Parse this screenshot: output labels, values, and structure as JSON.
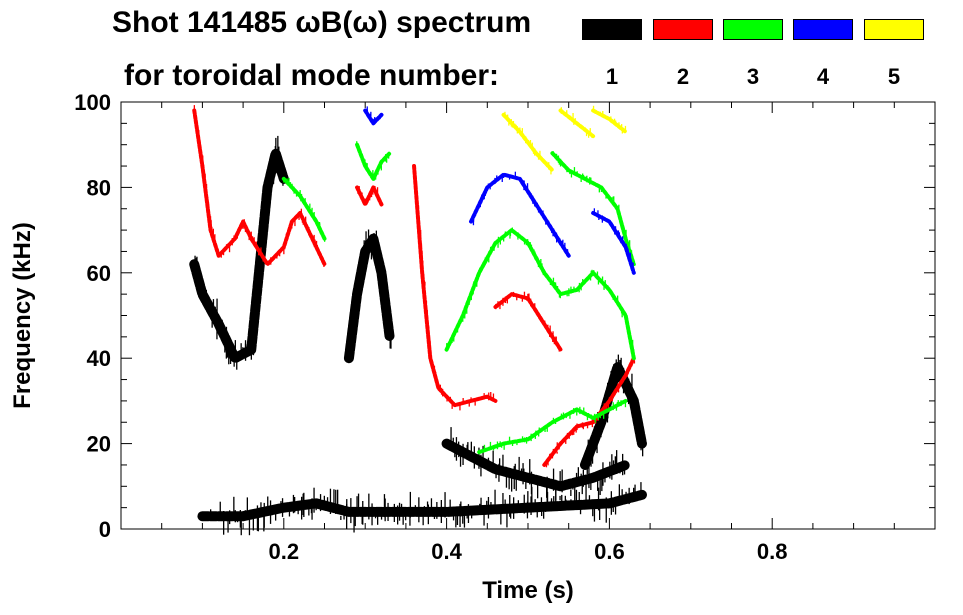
{
  "title_line1": "Shot 141485 ωB(ω) spectrum",
  "title_line2": "for toroidal mode number:",
  "chart_data": {
    "type": "spectrogram",
    "title": "Shot 141485 ωB(ω) spectrum",
    "xlabel": "Time (s)",
    "ylabel": "Frequency (kHz)",
    "xlim": [
      0.0,
      1.0
    ],
    "ylim": [
      0,
      100
    ],
    "x_ticks": [
      0.2,
      0.4,
      0.6,
      0.8
    ],
    "x_tick_labels": [
      "0.2",
      "0.4",
      "0.6",
      "0.8"
    ],
    "y_ticks": [
      0,
      20,
      40,
      60,
      80,
      100
    ],
    "y_tick_labels": [
      "0",
      "20",
      "40",
      "60",
      "80",
      "100"
    ],
    "legend_title": "for toroidal mode number:",
    "legend_position": "top-right",
    "series": [
      {
        "name": "1",
        "color": "#000000"
      },
      {
        "name": "2",
        "color": "#ff0000"
      },
      {
        "name": "3",
        "color": "#00ff00"
      },
      {
        "name": "4",
        "color": "#0000ff"
      },
      {
        "name": "5",
        "color": "#ffff00"
      }
    ],
    "mode_traces": [
      {
        "mode": "1",
        "points": [
          [
            0.09,
            62
          ],
          [
            0.1,
            55
          ],
          [
            0.12,
            48
          ],
          [
            0.14,
            40
          ],
          [
            0.16,
            42
          ],
          [
            0.18,
            80
          ],
          [
            0.19,
            88
          ],
          [
            0.2,
            82
          ]
        ]
      },
      {
        "mode": "1",
        "points": [
          [
            0.28,
            40
          ],
          [
            0.29,
            55
          ],
          [
            0.3,
            65
          ],
          [
            0.31,
            68
          ],
          [
            0.32,
            60
          ],
          [
            0.33,
            45
          ]
        ]
      },
      {
        "mode": "1",
        "points": [
          [
            0.4,
            20
          ],
          [
            0.43,
            17
          ],
          [
            0.46,
            14
          ],
          [
            0.5,
            12
          ],
          [
            0.54,
            10
          ],
          [
            0.58,
            12
          ],
          [
            0.62,
            15
          ]
        ]
      },
      {
        "mode": "1",
        "points": [
          [
            0.1,
            3
          ],
          [
            0.15,
            3
          ],
          [
            0.2,
            5
          ],
          [
            0.24,
            6
          ],
          [
            0.28,
            4
          ],
          [
            0.4,
            4
          ],
          [
            0.5,
            5
          ],
          [
            0.6,
            6
          ],
          [
            0.64,
            8
          ]
        ]
      },
      {
        "mode": "1",
        "points": [
          [
            0.57,
            15
          ],
          [
            0.59,
            25
          ],
          [
            0.61,
            38
          ],
          [
            0.63,
            30
          ],
          [
            0.64,
            20
          ]
        ]
      },
      {
        "mode": "2",
        "points": [
          [
            0.09,
            98
          ],
          [
            0.1,
            85
          ],
          [
            0.11,
            70
          ],
          [
            0.12,
            64
          ],
          [
            0.14,
            68
          ],
          [
            0.15,
            72
          ],
          [
            0.16,
            68
          ],
          [
            0.18,
            62
          ],
          [
            0.2,
            66
          ],
          [
            0.21,
            72
          ],
          [
            0.22,
            74
          ],
          [
            0.24,
            66
          ],
          [
            0.25,
            62
          ]
        ]
      },
      {
        "mode": "2",
        "points": [
          [
            0.29,
            80
          ],
          [
            0.3,
            76
          ],
          [
            0.31,
            80
          ],
          [
            0.32,
            76
          ]
        ]
      },
      {
        "mode": "2",
        "points": [
          [
            0.36,
            85
          ],
          [
            0.37,
            60
          ],
          [
            0.38,
            40
          ],
          [
            0.39,
            33
          ],
          [
            0.41,
            29
          ],
          [
            0.43,
            30
          ],
          [
            0.45,
            31
          ],
          [
            0.46,
            30
          ]
        ]
      },
      {
        "mode": "2",
        "points": [
          [
            0.46,
            52
          ],
          [
            0.48,
            55
          ],
          [
            0.5,
            54
          ],
          [
            0.52,
            48
          ],
          [
            0.54,
            42
          ]
        ]
      },
      {
        "mode": "2",
        "points": [
          [
            0.52,
            15
          ],
          [
            0.54,
            20
          ],
          [
            0.56,
            24
          ],
          [
            0.58,
            25
          ],
          [
            0.6,
            30
          ],
          [
            0.62,
            36
          ],
          [
            0.63,
            40
          ]
        ]
      },
      {
        "mode": "3",
        "points": [
          [
            0.2,
            82
          ],
          [
            0.22,
            78
          ],
          [
            0.24,
            72
          ],
          [
            0.25,
            68
          ]
        ]
      },
      {
        "mode": "3",
        "points": [
          [
            0.29,
            90
          ],
          [
            0.3,
            85
          ],
          [
            0.31,
            82
          ],
          [
            0.32,
            86
          ],
          [
            0.33,
            88
          ]
        ]
      },
      {
        "mode": "3",
        "points": [
          [
            0.4,
            42
          ],
          [
            0.42,
            50
          ],
          [
            0.44,
            60
          ],
          [
            0.46,
            67
          ],
          [
            0.48,
            70
          ],
          [
            0.5,
            67
          ],
          [
            0.52,
            60
          ],
          [
            0.54,
            55
          ],
          [
            0.56,
            56
          ],
          [
            0.58,
            60
          ],
          [
            0.6,
            56
          ],
          [
            0.62,
            50
          ],
          [
            0.63,
            40
          ]
        ]
      },
      {
        "mode": "3",
        "points": [
          [
            0.44,
            18
          ],
          [
            0.47,
            20
          ],
          [
            0.5,
            21
          ],
          [
            0.53,
            25
          ],
          [
            0.56,
            28
          ],
          [
            0.58,
            26
          ],
          [
            0.62,
            30
          ]
        ]
      },
      {
        "mode": "3",
        "points": [
          [
            0.53,
            88
          ],
          [
            0.55,
            84
          ],
          [
            0.57,
            82
          ],
          [
            0.59,
            80
          ],
          [
            0.61,
            75
          ],
          [
            0.62,
            68
          ],
          [
            0.63,
            62
          ]
        ]
      },
      {
        "mode": "4",
        "points": [
          [
            0.3,
            98
          ],
          [
            0.31,
            95
          ],
          [
            0.32,
            97
          ]
        ]
      },
      {
        "mode": "4",
        "points": [
          [
            0.43,
            72
          ],
          [
            0.45,
            80
          ],
          [
            0.47,
            83
          ],
          [
            0.49,
            82
          ],
          [
            0.51,
            76
          ],
          [
            0.53,
            70
          ],
          [
            0.55,
            64
          ]
        ]
      },
      {
        "mode": "4",
        "points": [
          [
            0.58,
            74
          ],
          [
            0.6,
            72
          ],
          [
            0.62,
            66
          ],
          [
            0.63,
            60
          ]
        ]
      },
      {
        "mode": "5",
        "points": [
          [
            0.47,
            97
          ],
          [
            0.49,
            93
          ],
          [
            0.51,
            88
          ],
          [
            0.53,
            84
          ]
        ]
      },
      {
        "mode": "5",
        "points": [
          [
            0.54,
            98
          ],
          [
            0.56,
            95
          ],
          [
            0.58,
            92
          ]
        ]
      },
      {
        "mode": "5",
        "points": [
          [
            0.58,
            98
          ],
          [
            0.6,
            96
          ],
          [
            0.62,
            93
          ]
        ]
      }
    ]
  }
}
